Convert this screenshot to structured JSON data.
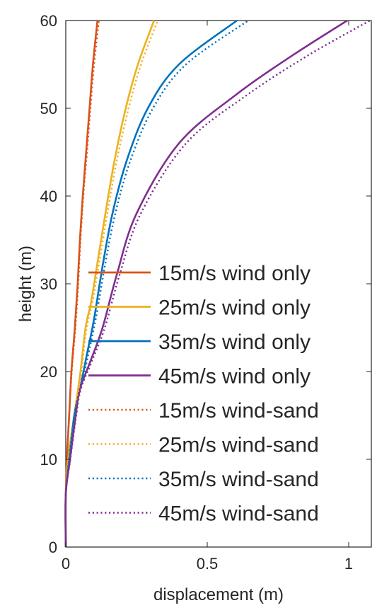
{
  "chart_data": {
    "type": "line",
    "title": "",
    "xlabel": "displacement (m)",
    "ylabel": "height (m)",
    "xlim": [
      0,
      1.08
    ],
    "ylim": [
      0,
      60
    ],
    "x_ticks": [
      0,
      0.5,
      1
    ],
    "x_tick_labels": [
      "0",
      "0.5",
      "1"
    ],
    "y_ticks": [
      0,
      10,
      20,
      30,
      40,
      50,
      60
    ],
    "y_tick_labels": [
      "0",
      "10",
      "20",
      "30",
      "40",
      "50",
      "60"
    ],
    "grid": false,
    "legend_position": "lower-right",
    "series": [
      {
        "name": "15m/s wind only",
        "style": "solid",
        "color": "#D95319",
        "points": [
          [
            0,
            0
          ],
          [
            0,
            6
          ],
          [
            0.004,
            10
          ],
          [
            0.012,
            15
          ],
          [
            0.02,
            20
          ],
          [
            0.032,
            25
          ],
          [
            0.042,
            30
          ],
          [
            0.05,
            35
          ],
          [
            0.06,
            40
          ],
          [
            0.072,
            45
          ],
          [
            0.084,
            50
          ],
          [
            0.096,
            55
          ],
          [
            0.112,
            60
          ]
        ]
      },
      {
        "name": "25m/s wind only",
        "style": "solid",
        "color": "#EDB120",
        "points": [
          [
            0,
            0
          ],
          [
            0,
            6
          ],
          [
            0.008,
            10
          ],
          [
            0.03,
            15
          ],
          [
            0.052,
            20
          ],
          [
            0.07,
            25
          ],
          [
            0.09,
            28
          ],
          [
            0.11,
            32
          ],
          [
            0.14,
            38
          ],
          [
            0.172,
            44
          ],
          [
            0.212,
            50
          ],
          [
            0.255,
            55
          ],
          [
            0.312,
            60
          ]
        ]
      },
      {
        "name": "35m/s wind only",
        "style": "solid",
        "color": "#0072BD",
        "points": [
          [
            0,
            0
          ],
          [
            0,
            6
          ],
          [
            0.012,
            10
          ],
          [
            0.03,
            15
          ],
          [
            0.05,
            18
          ],
          [
            0.075,
            22
          ],
          [
            0.1,
            26
          ],
          [
            0.13,
            32
          ],
          [
            0.165,
            38
          ],
          [
            0.215,
            44
          ],
          [
            0.29,
            50
          ],
          [
            0.4,
            55
          ],
          [
            0.605,
            60
          ]
        ]
      },
      {
        "name": "45m/s wind only",
        "style": "solid",
        "color": "#7E2F8E",
        "points": [
          [
            0,
            0
          ],
          [
            0,
            6
          ],
          [
            0.015,
            10
          ],
          [
            0.035,
            15
          ],
          [
            0.05,
            18
          ],
          [
            0.085,
            21
          ],
          [
            0.13,
            25
          ],
          [
            0.18,
            31
          ],
          [
            0.25,
            38
          ],
          [
            0.4,
            46
          ],
          [
            0.6,
            51.5
          ],
          [
            0.8,
            56
          ],
          [
            0.995,
            60
          ]
        ]
      },
      {
        "name": "15m/s wind-sand",
        "style": "dotted",
        "color": "#D95319",
        "points": [
          [
            0,
            0
          ],
          [
            0,
            6
          ],
          [
            0.004,
            10
          ],
          [
            0.012,
            15
          ],
          [
            0.021,
            20
          ],
          [
            0.034,
            25
          ],
          [
            0.044,
            30
          ],
          [
            0.052,
            35
          ],
          [
            0.062,
            40
          ],
          [
            0.075,
            45
          ],
          [
            0.087,
            50
          ],
          [
            0.1,
            55
          ],
          [
            0.117,
            60
          ]
        ]
      },
      {
        "name": "25m/s wind-sand",
        "style": "dotted",
        "color": "#EDB120",
        "points": [
          [
            0,
            0
          ],
          [
            0,
            6
          ],
          [
            0.009,
            10
          ],
          [
            0.032,
            15
          ],
          [
            0.055,
            20
          ],
          [
            0.074,
            25
          ],
          [
            0.095,
            28
          ],
          [
            0.116,
            32
          ],
          [
            0.147,
            38
          ],
          [
            0.18,
            44
          ],
          [
            0.222,
            50
          ],
          [
            0.266,
            55
          ],
          [
            0.325,
            60
          ]
        ]
      },
      {
        "name": "35m/s wind-sand",
        "style": "dotted",
        "color": "#0072BD",
        "points": [
          [
            0,
            0
          ],
          [
            0,
            6
          ],
          [
            0.013,
            10
          ],
          [
            0.032,
            15
          ],
          [
            0.053,
            18
          ],
          [
            0.08,
            22
          ],
          [
            0.106,
            26
          ],
          [
            0.138,
            32
          ],
          [
            0.175,
            38
          ],
          [
            0.228,
            44
          ],
          [
            0.308,
            50
          ],
          [
            0.425,
            55
          ],
          [
            0.645,
            60
          ]
        ]
      },
      {
        "name": "45m/s wind-sand",
        "style": "dotted",
        "color": "#7E2F8E",
        "points": [
          [
            0,
            0
          ],
          [
            0,
            6
          ],
          [
            0.016,
            10
          ],
          [
            0.037,
            15
          ],
          [
            0.053,
            18
          ],
          [
            0.09,
            21
          ],
          [
            0.138,
            25
          ],
          [
            0.19,
            31
          ],
          [
            0.265,
            38
          ],
          [
            0.425,
            46
          ],
          [
            0.64,
            51.5
          ],
          [
            0.855,
            56
          ],
          [
            1.075,
            60
          ]
        ]
      }
    ]
  }
}
